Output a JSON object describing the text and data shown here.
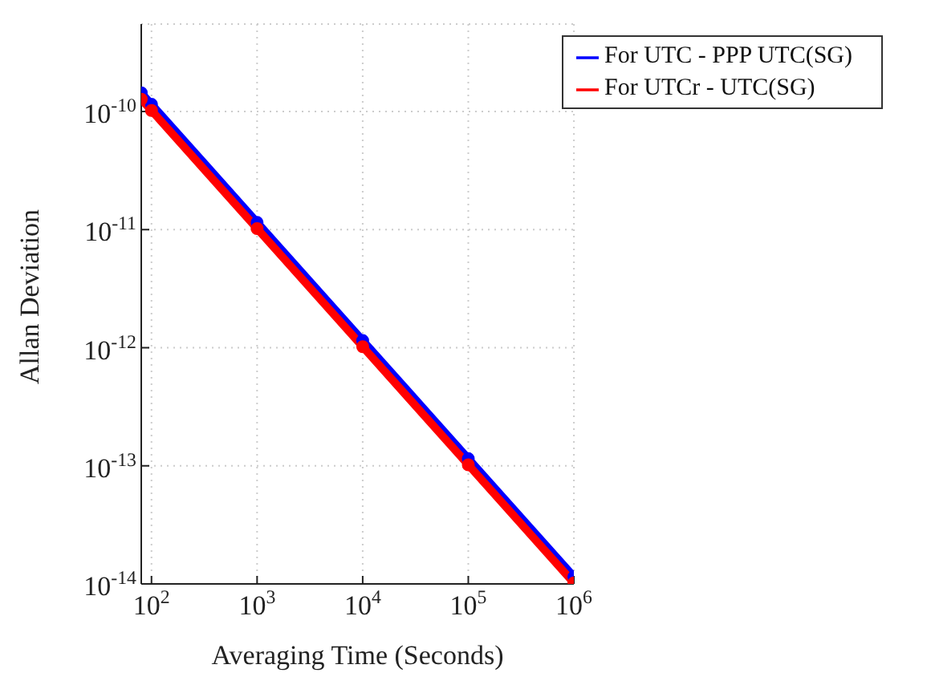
{
  "chart_data": {
    "type": "line",
    "xlabel": "Averaging Time (Seconds)",
    "ylabel": "Allan Deviation",
    "log": "xy",
    "grid": true,
    "legend": "top right",
    "marker": "circle",
    "line_style": "solid",
    "x": [
      80,
      100,
      1000,
      10000,
      100000,
      1000000
    ],
    "xlim": [
      80,
      1000000
    ],
    "xticks": [
      {
        "value": 100,
        "label": "10$^{2}$"
      },
      {
        "value": 1000,
        "label": "10$^{3}$"
      },
      {
        "value": 10000,
        "label": "10$^{4}$"
      },
      {
        "value": 100000,
        "label": "10$^{5}$"
      },
      {
        "value": 1000000,
        "label": "10$^{6}$"
      }
    ],
    "ylim": [
      1e-14,
      5.5e-10
    ],
    "yticks": [
      {
        "value": 1e-14,
        "label": "10$^{-14}$"
      },
      {
        "value": 1e-13,
        "label": "10$^{-13}$"
      },
      {
        "value": 1e-12,
        "label": "10$^{-12}$"
      },
      {
        "value": 1e-11,
        "label": "10$^{-11}$"
      },
      {
        "value": 1e-10,
        "label": "10$^{-10}$"
      }
    ],
    "series": [
      {
        "name": "For UTC - PPP UTC(SG)",
        "color": "#0000ff",
        "values": [
          1.44e-10,
          1.15e-10,
          1.15e-11,
          1.15e-12,
          1.15e-13,
          1.15e-14
        ]
      },
      {
        "name": "For UTCr - UTC(SG)",
        "color": "#ff0000",
        "values": [
          1.27e-10,
          1.02e-10,
          1.02e-11,
          1.02e-12,
          1.02e-13,
          1.02e-14
        ]
      }
    ]
  }
}
